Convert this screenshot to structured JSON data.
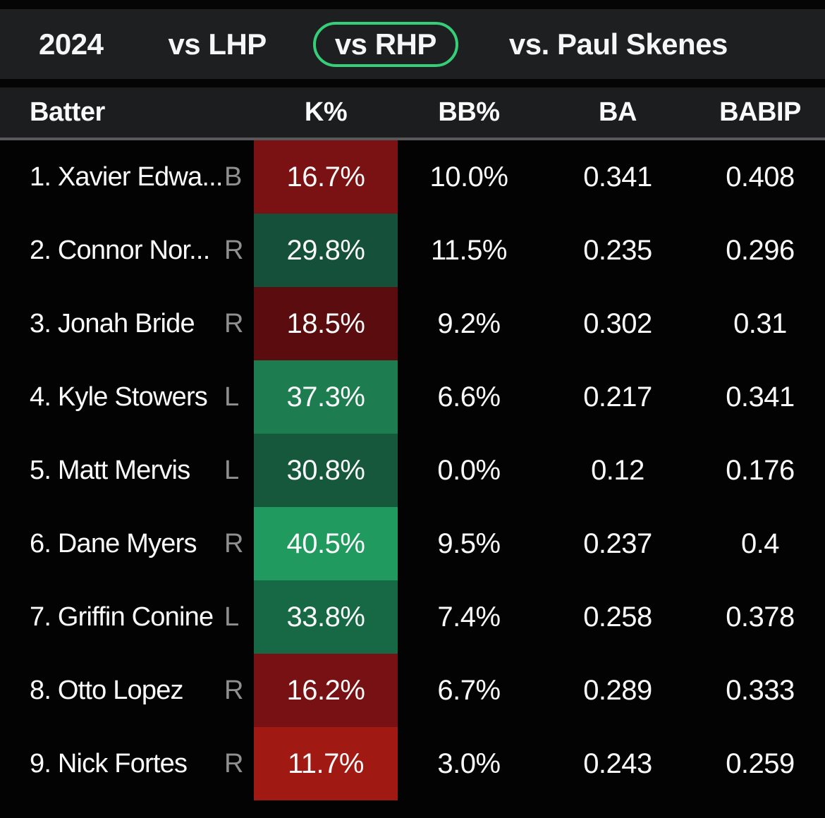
{
  "tabs": [
    {
      "label": "2024",
      "selected": false
    },
    {
      "label": "vs LHP",
      "selected": false
    },
    {
      "label": "vs RHP",
      "selected": true
    },
    {
      "label": "vs. Paul Skenes",
      "selected": false
    }
  ],
  "colors": {
    "accent_green": "#35CE79",
    "tab_bar_bg": "#1E1F21",
    "header_bg": "#1C1D1F",
    "page_bg": "#030303",
    "text": "#FAFAFA",
    "muted_text": "#8F9092"
  },
  "table": {
    "columns": [
      "Batter",
      "K%",
      "BB%",
      "BA",
      "BABIP"
    ],
    "rows": [
      {
        "name": "1. Xavier Edwa...",
        "hand": "B",
        "k_pct": "16.7%",
        "k_color": "#7A1113",
        "bb_pct": "10.0%",
        "ba": "0.341",
        "babip": "0.408"
      },
      {
        "name": "2. Connor Nor...",
        "hand": "R",
        "k_pct": "29.8%",
        "k_color": "#15513A",
        "bb_pct": "11.5%",
        "ba": "0.235",
        "babip": "0.296"
      },
      {
        "name": "3. Jonah Bride",
        "hand": "R",
        "k_pct": "18.5%",
        "k_color": "#5A0C0E",
        "bb_pct": "9.2%",
        "ba": "0.302",
        "babip": "0.31"
      },
      {
        "name": "4. Kyle Stowers",
        "hand": "L",
        "k_pct": "37.3%",
        "k_color": "#1E7D50",
        "bb_pct": "6.6%",
        "ba": "0.217",
        "babip": "0.341"
      },
      {
        "name": "5. Matt Mervis",
        "hand": "L",
        "k_pct": "30.8%",
        "k_color": "#16583C",
        "bb_pct": "0.0%",
        "ba": "0.12",
        "babip": "0.176"
      },
      {
        "name": "6. Dane Myers",
        "hand": "R",
        "k_pct": "40.5%",
        "k_color": "#219A60",
        "bb_pct": "9.5%",
        "ba": "0.237",
        "babip": "0.4"
      },
      {
        "name": "7. Griffin Conine",
        "hand": "L",
        "k_pct": "33.8%",
        "k_color": "#176946",
        "bb_pct": "7.4%",
        "ba": "0.258",
        "babip": "0.378"
      },
      {
        "name": "8. Otto Lopez",
        "hand": "R",
        "k_pct": "16.2%",
        "k_color": "#781114",
        "bb_pct": "6.7%",
        "ba": "0.289",
        "babip": "0.333"
      },
      {
        "name": "9. Nick Fortes",
        "hand": "R",
        "k_pct": "11.7%",
        "k_color": "#A11913",
        "bb_pct": "3.0%",
        "ba": "0.243",
        "babip": "0.259"
      }
    ]
  }
}
